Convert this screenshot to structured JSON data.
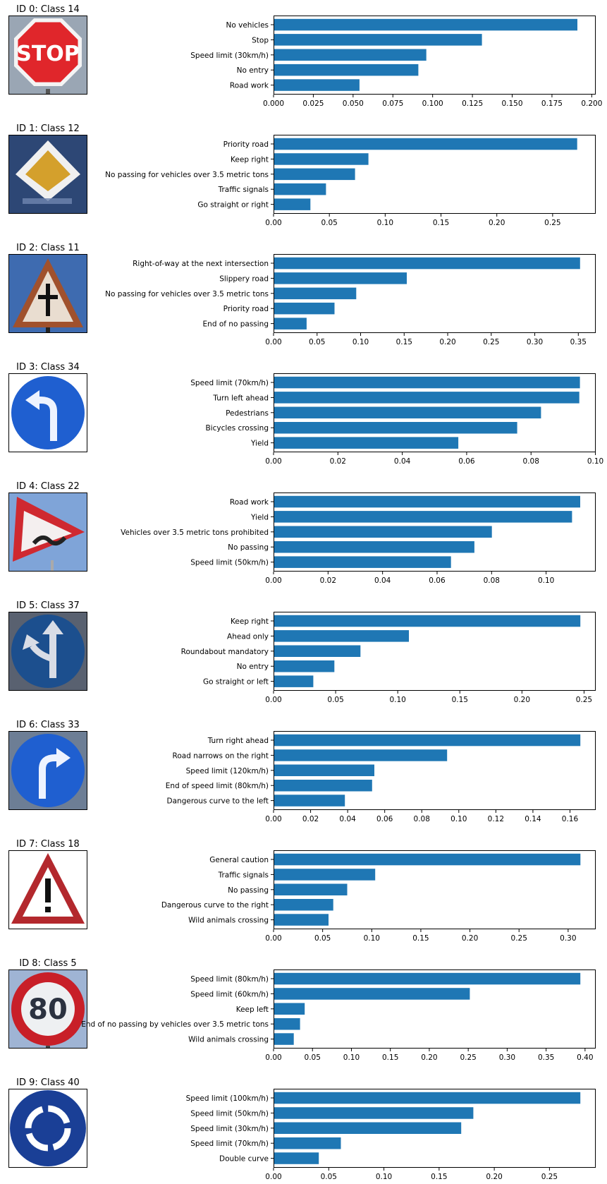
{
  "colors": {
    "bar": "#1f77b4",
    "axis": "#000000",
    "page": "#ffffff"
  },
  "chart_data": [
    {
      "type": "bar",
      "orientation": "horizontal",
      "title": "ID 0: Class 14",
      "sign": {
        "icon": "stop-sign-icon",
        "text": "STOP"
      },
      "categories": [
        "No vehicles",
        "Stop",
        "Speed limit (30km/h)",
        "No entry",
        "Road work"
      ],
      "values": [
        0.191,
        0.131,
        0.096,
        0.091,
        0.054
      ],
      "xlim": [
        0,
        0.2025
      ],
      "xticks": [
        0,
        0.025,
        0.05,
        0.075,
        0.1,
        0.125,
        0.15,
        0.175,
        0.2
      ],
      "xtick_labels": [
        "0.000",
        "0.025",
        "0.050",
        "0.075",
        "0.100",
        "0.125",
        "0.150",
        "0.175",
        "0.200"
      ]
    },
    {
      "type": "bar",
      "orientation": "horizontal",
      "title": "ID 1: Class 12",
      "sign": {
        "icon": "priority-road-sign-icon"
      },
      "categories": [
        "Priority road",
        "Keep right",
        "No passing for vehicles over 3.5 metric tons",
        "Traffic signals",
        "Go straight or right"
      ],
      "values": [
        0.272,
        0.085,
        0.073,
        0.047,
        0.033
      ],
      "xlim": [
        0,
        0.2886
      ],
      "xticks": [
        0,
        0.05,
        0.1,
        0.15,
        0.2,
        0.25
      ],
      "xtick_labels": [
        "0.00",
        "0.05",
        "0.10",
        "0.15",
        "0.20",
        "0.25"
      ]
    },
    {
      "type": "bar",
      "orientation": "horizontal",
      "title": "ID 2: Class 11",
      "sign": {
        "icon": "right-of-way-sign-icon"
      },
      "categories": [
        "Right-of-way at the next intersection",
        "Slippery road",
        "No passing for vehicles over 3.5 metric tons",
        "Priority road",
        "End of no passing"
      ],
      "values": [
        0.352,
        0.153,
        0.095,
        0.07,
        0.038
      ],
      "xlim": [
        0,
        0.37
      ],
      "xticks": [
        0,
        0.05,
        0.1,
        0.15,
        0.2,
        0.25,
        0.3,
        0.35
      ],
      "xtick_labels": [
        "0.00",
        "0.05",
        "0.10",
        "0.15",
        "0.20",
        "0.25",
        "0.30",
        "0.35"
      ]
    },
    {
      "type": "bar",
      "orientation": "horizontal",
      "title": "ID 3: Class 34",
      "sign": {
        "icon": "turn-left-ahead-sign-icon"
      },
      "categories": [
        "Speed limit (70km/h)",
        "Turn left ahead",
        "Pedestrians",
        "Bicycles crossing",
        "Yield"
      ],
      "values": [
        0.0952,
        0.095,
        0.0831,
        0.0757,
        0.0574
      ],
      "xlim": [
        0,
        0.1001
      ],
      "xticks": [
        0,
        0.02,
        0.04,
        0.06,
        0.08,
        0.1
      ],
      "xtick_labels": [
        "0.00",
        "0.02",
        "0.04",
        "0.06",
        "0.08",
        "0.10"
      ]
    },
    {
      "type": "bar",
      "orientation": "horizontal",
      "title": "ID 4: Class 22",
      "sign": {
        "icon": "bumpy-road-sign-icon"
      },
      "categories": [
        "Road work",
        "Yield",
        "Vehicles over 3.5 metric tons prohibited",
        "No passing",
        "Speed limit (50km/h)"
      ],
      "values": [
        0.1125,
        0.1095,
        0.0801,
        0.0737,
        0.0651
      ],
      "xlim": [
        0,
        0.1182
      ],
      "xticks": [
        0,
        0.02,
        0.04,
        0.06,
        0.08,
        0.1
      ],
      "xtick_labels": [
        "0.00",
        "0.02",
        "0.04",
        "0.06",
        "0.08",
        "0.10"
      ]
    },
    {
      "type": "bar",
      "orientation": "horizontal",
      "title": "ID 5: Class 37",
      "sign": {
        "icon": "go-straight-or-left-sign-icon"
      },
      "categories": [
        "Keep right",
        "Ahead only",
        "Roundabout mandatory",
        "No entry",
        "Go straight or left"
      ],
      "values": [
        0.247,
        0.109,
        0.07,
        0.049,
        0.032
      ],
      "xlim": [
        0,
        0.2594
      ],
      "xticks": [
        0,
        0.05,
        0.1,
        0.15,
        0.2,
        0.25
      ],
      "xtick_labels": [
        "0.00",
        "0.05",
        "0.10",
        "0.15",
        "0.20",
        "0.25"
      ]
    },
    {
      "type": "bar",
      "orientation": "horizontal",
      "title": "ID 6: Class 33",
      "sign": {
        "icon": "turn-right-ahead-sign-icon"
      },
      "categories": [
        "Turn right ahead",
        "Road narrows on the right",
        "Speed limit (120km/h)",
        "End of speed limit (80km/h)",
        "Dangerous curve to the left"
      ],
      "values": [
        0.1656,
        0.0937,
        0.0544,
        0.0532,
        0.0385
      ],
      "xlim": [
        0,
        0.1739
      ],
      "xticks": [
        0,
        0.02,
        0.04,
        0.06,
        0.08,
        0.1,
        0.12,
        0.14,
        0.16
      ],
      "xtick_labels": [
        "0.00",
        "0.02",
        "0.04",
        "0.06",
        "0.08",
        "0.10",
        "0.12",
        "0.14",
        "0.16"
      ]
    },
    {
      "type": "bar",
      "orientation": "horizontal",
      "title": "ID 7: Class 18",
      "sign": {
        "icon": "general-caution-sign-icon"
      },
      "categories": [
        "General caution",
        "Traffic signals",
        "No passing",
        "Dangerous curve to the right",
        "Wild animals crossing"
      ],
      "values": [
        0.3125,
        0.1035,
        0.075,
        0.0608,
        0.056
      ],
      "xlim": [
        0,
        0.3281
      ],
      "xticks": [
        0,
        0.05,
        0.1,
        0.15,
        0.2,
        0.25,
        0.3
      ],
      "xtick_labels": [
        "0.00",
        "0.05",
        "0.10",
        "0.15",
        "0.20",
        "0.25",
        "0.30"
      ]
    },
    {
      "type": "bar",
      "orientation": "horizontal",
      "title": "ID 8: Class 5",
      "sign": {
        "icon": "speed-limit-80-sign-icon",
        "text": "80"
      },
      "categories": [
        "Speed limit (80km/h)",
        "Speed limit (60km/h)",
        "Keep left",
        "End of no passing by vehicles over 3.5 metric tons",
        "Wild animals crossing"
      ],
      "values": [
        0.394,
        0.252,
        0.04,
        0.034,
        0.026
      ],
      "xlim": [
        0,
        0.4137
      ],
      "xticks": [
        0,
        0.05,
        0.1,
        0.15,
        0.2,
        0.25,
        0.3,
        0.35,
        0.4
      ],
      "xtick_labels": [
        "0.00",
        "0.05",
        "0.10",
        "0.15",
        "0.20",
        "0.25",
        "0.30",
        "0.35",
        "0.40"
      ]
    },
    {
      "type": "bar",
      "orientation": "horizontal",
      "title": "ID 9: Class 40",
      "sign": {
        "icon": "roundabout-sign-icon"
      },
      "categories": [
        "Speed limit (100km/h)",
        "Speed limit (50km/h)",
        "Speed limit (30km/h)",
        "Speed limit (70km/h)",
        "Double curve"
      ],
      "values": [
        0.278,
        0.181,
        0.17,
        0.061,
        0.041
      ],
      "xlim": [
        0,
        0.2919
      ],
      "xticks": [
        0,
        0.05,
        0.1,
        0.15,
        0.2,
        0.25
      ],
      "xtick_labels": [
        "0.00",
        "0.05",
        "0.10",
        "0.15",
        "0.20",
        "0.25"
      ]
    }
  ]
}
